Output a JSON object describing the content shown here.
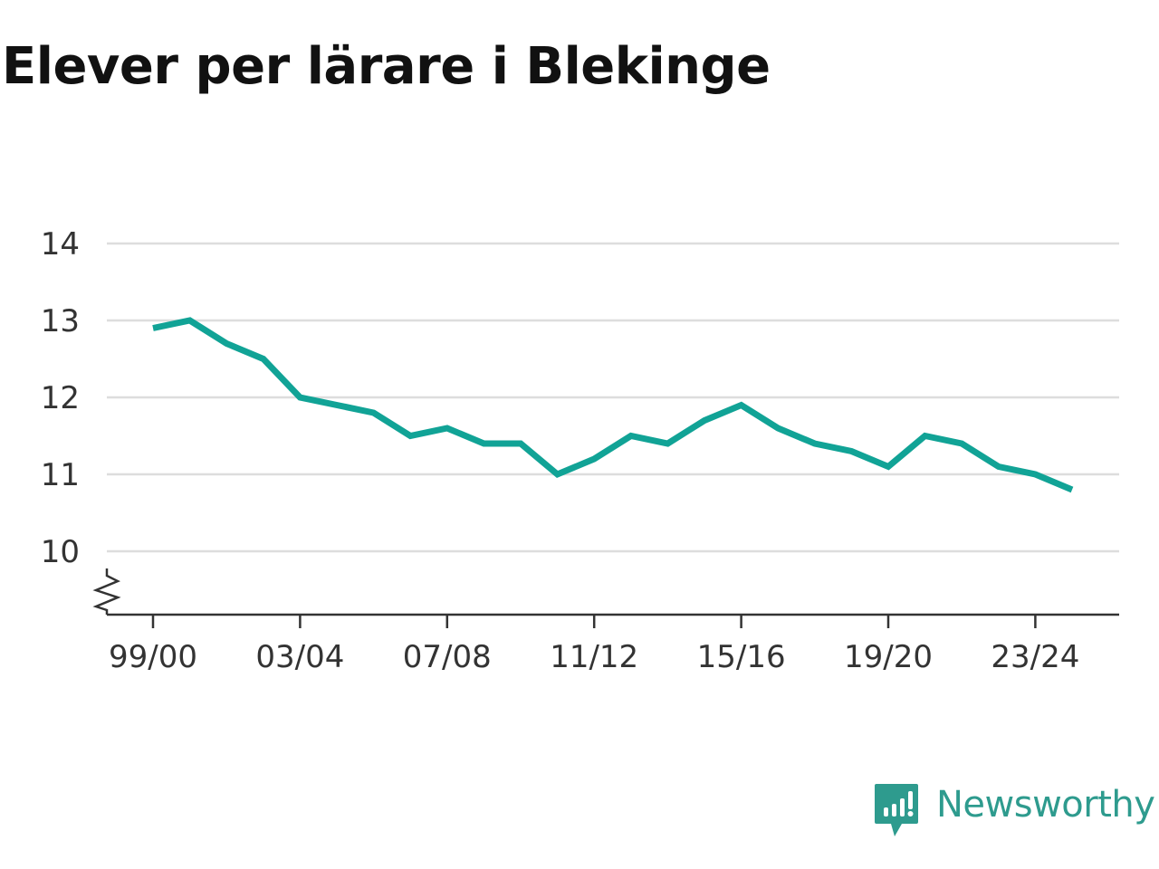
{
  "chart_data": {
    "type": "line",
    "title": "Elever per lärare i Blekinge",
    "xlabel": "",
    "ylabel": "",
    "x": [
      "99/00",
      "00/01",
      "01/02",
      "02/03",
      "03/04",
      "04/05",
      "05/06",
      "06/07",
      "07/08",
      "08/09",
      "09/10",
      "10/11",
      "11/12",
      "12/13",
      "13/14",
      "14/15",
      "15/16",
      "16/17",
      "17/18",
      "18/19",
      "19/20",
      "20/21",
      "21/22",
      "22/23",
      "23/24",
      "24/25"
    ],
    "x_tick_labels": [
      "99/00",
      "03/04",
      "07/08",
      "11/12",
      "15/16",
      "19/20",
      "23/24"
    ],
    "y_tick_labels": [
      "10",
      "11",
      "12",
      "13",
      "14"
    ],
    "ylim": [
      9.2,
      14
    ],
    "y_axis_break": true,
    "grid": true,
    "series": [
      {
        "values": [
          12.9,
          13.0,
          12.7,
          12.5,
          12.0,
          11.9,
          11.8,
          11.5,
          11.6,
          11.4,
          11.4,
          11.0,
          11.2,
          11.5,
          11.4,
          11.7,
          11.9,
          11.6,
          11.4,
          11.3,
          11.1,
          11.5,
          11.4,
          11.1,
          11.0,
          10.8
        ],
        "color": "#11a396"
      }
    ]
  },
  "brand": {
    "name": "Newsworthy",
    "color": "#2e9b8e",
    "icon": "newsworthy-logo-icon"
  }
}
